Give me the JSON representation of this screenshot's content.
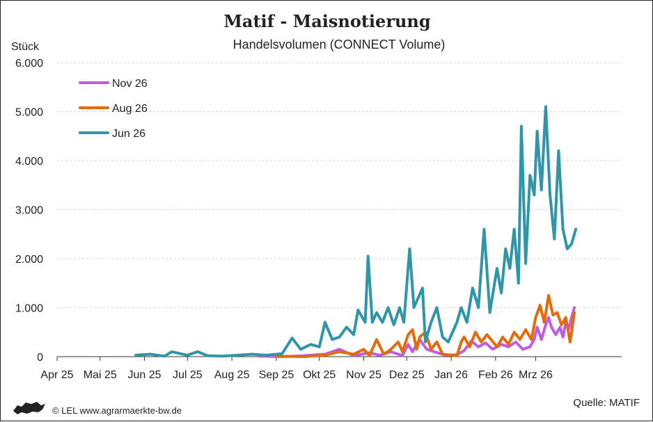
{
  "chart_data": {
    "type": "line",
    "title": "Matif - Maisnotierung",
    "subtitle": "Handelsvolumen (CONNECT Volume)",
    "ylabel": "Stück",
    "ylim": [
      0,
      6000
    ],
    "yticks": [
      0,
      1000,
      2000,
      3000,
      4000,
      5000,
      6000
    ],
    "ytick_labels": [
      "0",
      "1.000",
      "2.000",
      "3.000",
      "4.000",
      "5.000",
      "6.000"
    ],
    "xlim": [
      "2025-04-01",
      "2026-04-30"
    ],
    "xticks": [
      "2025-04-01",
      "2025-05-01",
      "2025-06-01",
      "2025-07-01",
      "2025-08-01",
      "2025-09-01",
      "2025-10-01",
      "2025-11-01",
      "2025-12-01",
      "2026-01-01",
      "2026-02-01",
      "2026-03-01"
    ],
    "xtick_labels": [
      "Apr 25",
      "Mai 25",
      "Jun 25",
      "Jul 25",
      "Aug 25",
      "Sep 25",
      "Okt 25",
      "Nov 25",
      "Dez 25",
      "Jan 26",
      "Feb 26",
      "Mrz 26"
    ],
    "grid": "horizontal-dashed",
    "legend_position": "top-left",
    "series": [
      {
        "name": "Nov 26",
        "color": "#c15be0",
        "points": [
          [
            "2025-08-20",
            10
          ],
          [
            "2025-09-05",
            0
          ],
          [
            "2025-09-20",
            20
          ],
          [
            "2025-10-05",
            50
          ],
          [
            "2025-10-15",
            150
          ],
          [
            "2025-10-25",
            20
          ],
          [
            "2025-11-05",
            80
          ],
          [
            "2025-11-12",
            30
          ],
          [
            "2025-11-20",
            100
          ],
          [
            "2025-11-28",
            20
          ],
          [
            "2025-12-02",
            250
          ],
          [
            "2025-12-05",
            100
          ],
          [
            "2025-12-10",
            350
          ],
          [
            "2025-12-15",
            150
          ],
          [
            "2025-12-20",
            100
          ],
          [
            "2025-12-28",
            30
          ],
          [
            "2026-01-05",
            40
          ],
          [
            "2026-01-10",
            120
          ],
          [
            "2026-01-15",
            320
          ],
          [
            "2026-01-20",
            200
          ],
          [
            "2026-01-25",
            280
          ],
          [
            "2026-01-30",
            150
          ],
          [
            "2026-02-05",
            250
          ],
          [
            "2026-02-10",
            200
          ],
          [
            "2026-02-15",
            300
          ],
          [
            "2026-02-20",
            150
          ],
          [
            "2026-02-25",
            200
          ],
          [
            "2026-02-28",
            350
          ],
          [
            "2026-03-02",
            600
          ],
          [
            "2026-03-05",
            350
          ],
          [
            "2026-03-08",
            650
          ],
          [
            "2026-03-10",
            800
          ],
          [
            "2026-03-12",
            600
          ],
          [
            "2026-03-15",
            450
          ],
          [
            "2026-03-18",
            600
          ],
          [
            "2026-03-20",
            400
          ],
          [
            "2026-03-22",
            700
          ],
          [
            "2026-03-24",
            550
          ],
          [
            "2026-03-26",
            800
          ],
          [
            "2026-03-28",
            1000
          ]
        ]
      },
      {
        "name": "Aug 26",
        "color": "#e36b0a",
        "points": [
          [
            "2025-09-01",
            10
          ],
          [
            "2025-09-20",
            0
          ],
          [
            "2025-10-05",
            30
          ],
          [
            "2025-10-15",
            100
          ],
          [
            "2025-10-25",
            50
          ],
          [
            "2025-11-01",
            150
          ],
          [
            "2025-11-05",
            20
          ],
          [
            "2025-11-10",
            350
          ],
          [
            "2025-11-15",
            50
          ],
          [
            "2025-11-20",
            150
          ],
          [
            "2025-11-25",
            300
          ],
          [
            "2025-11-28",
            100
          ],
          [
            "2025-12-02",
            450
          ],
          [
            "2025-12-05",
            550
          ],
          [
            "2025-12-08",
            150
          ],
          [
            "2025-12-10",
            400
          ],
          [
            "2025-12-14",
            500
          ],
          [
            "2025-12-18",
            150
          ],
          [
            "2025-12-22",
            300
          ],
          [
            "2025-12-26",
            50
          ],
          [
            "2026-01-05",
            20
          ],
          [
            "2026-01-08",
            300
          ],
          [
            "2026-01-10",
            400
          ],
          [
            "2026-01-14",
            200
          ],
          [
            "2026-01-18",
            500
          ],
          [
            "2026-01-22",
            300
          ],
          [
            "2026-01-26",
            450
          ],
          [
            "2026-02-02",
            200
          ],
          [
            "2026-02-06",
            400
          ],
          [
            "2026-02-10",
            250
          ],
          [
            "2026-02-14",
            500
          ],
          [
            "2026-02-18",
            350
          ],
          [
            "2026-02-22",
            550
          ],
          [
            "2026-02-26",
            350
          ],
          [
            "2026-03-01",
            800
          ],
          [
            "2026-03-04",
            1050
          ],
          [
            "2026-03-07",
            700
          ],
          [
            "2026-03-10",
            1250
          ],
          [
            "2026-03-13",
            850
          ],
          [
            "2026-03-16",
            900
          ],
          [
            "2026-03-19",
            650
          ],
          [
            "2026-03-22",
            800
          ],
          [
            "2026-03-25",
            300
          ],
          [
            "2026-03-28",
            900
          ]
        ]
      },
      {
        "name": "Jun 26",
        "color": "#2f95a8",
        "points": [
          [
            "2025-05-26",
            30
          ],
          [
            "2025-06-05",
            50
          ],
          [
            "2025-06-15",
            10
          ],
          [
            "2025-06-20",
            100
          ],
          [
            "2025-07-01",
            30
          ],
          [
            "2025-07-08",
            100
          ],
          [
            "2025-07-15",
            20
          ],
          [
            "2025-07-25",
            10
          ],
          [
            "2025-08-05",
            30
          ],
          [
            "2025-08-15",
            50
          ],
          [
            "2025-08-25",
            30
          ],
          [
            "2025-09-05",
            60
          ],
          [
            "2025-09-12",
            380
          ],
          [
            "2025-09-18",
            150
          ],
          [
            "2025-09-25",
            250
          ],
          [
            "2025-10-01",
            200
          ],
          [
            "2025-10-05",
            700
          ],
          [
            "2025-10-10",
            350
          ],
          [
            "2025-10-15",
            400
          ],
          [
            "2025-10-20",
            600
          ],
          [
            "2025-10-25",
            450
          ],
          [
            "2025-10-28",
            950
          ],
          [
            "2025-11-02",
            700
          ],
          [
            "2025-11-04",
            2050
          ],
          [
            "2025-11-07",
            700
          ],
          [
            "2025-11-10",
            900
          ],
          [
            "2025-11-14",
            700
          ],
          [
            "2025-11-18",
            1000
          ],
          [
            "2025-11-22",
            650
          ],
          [
            "2025-11-26",
            1000
          ],
          [
            "2025-11-29",
            700
          ],
          [
            "2025-12-03",
            2200
          ],
          [
            "2025-12-06",
            1000
          ],
          [
            "2025-12-09",
            1200
          ],
          [
            "2025-12-12",
            1400
          ],
          [
            "2025-12-14",
            300
          ],
          [
            "2025-12-18",
            700
          ],
          [
            "2025-12-22",
            1000
          ],
          [
            "2025-12-26",
            400
          ],
          [
            "2025-12-30",
            300
          ],
          [
            "2026-01-05",
            700
          ],
          [
            "2026-01-08",
            1000
          ],
          [
            "2026-01-12",
            700
          ],
          [
            "2026-01-16",
            1400
          ],
          [
            "2026-01-20",
            1000
          ],
          [
            "2026-01-24",
            2600
          ],
          [
            "2026-01-28",
            900
          ],
          [
            "2026-02-02",
            1800
          ],
          [
            "2026-02-05",
            1300
          ],
          [
            "2026-02-08",
            2200
          ],
          [
            "2026-02-11",
            1800
          ],
          [
            "2026-02-14",
            2600
          ],
          [
            "2026-02-17",
            1500
          ],
          [
            "2026-02-19",
            4700
          ],
          [
            "2026-02-22",
            1900
          ],
          [
            "2026-02-25",
            3700
          ],
          [
            "2026-02-28",
            3300
          ],
          [
            "2026-03-02",
            4600
          ],
          [
            "2026-03-05",
            3400
          ],
          [
            "2026-03-08",
            5100
          ],
          [
            "2026-03-11",
            3300
          ],
          [
            "2026-03-14",
            2400
          ],
          [
            "2026-03-17",
            4200
          ],
          [
            "2026-03-20",
            2600
          ],
          [
            "2026-03-23",
            2200
          ],
          [
            "2026-03-26",
            2300
          ],
          [
            "2026-03-29",
            2600
          ]
        ]
      }
    ]
  },
  "footer": {
    "copyright": "© LEL www.agrarmaerkte-bw.de",
    "source": "Quelle: MATIF"
  },
  "icons": {
    "logo": "lion-logo-icon"
  }
}
